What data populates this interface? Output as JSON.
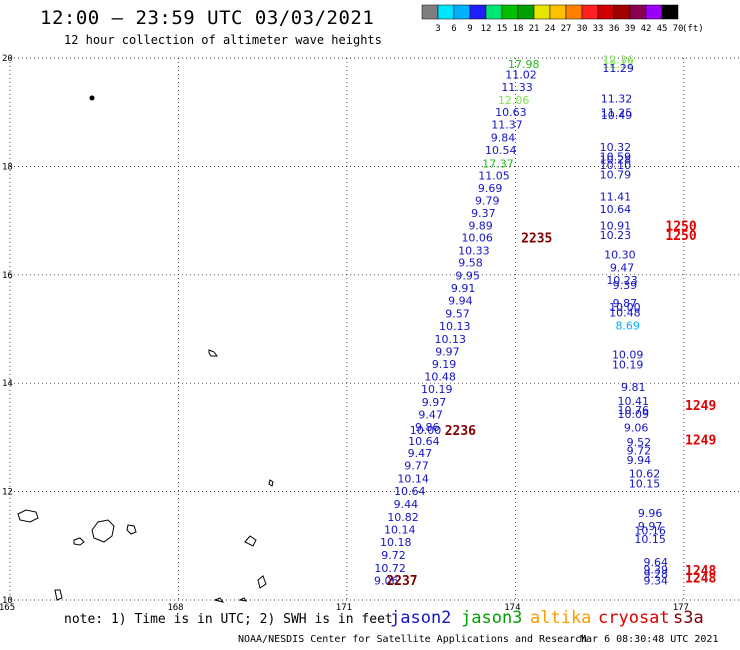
{
  "header": {
    "title": "12:00 – 23:59 UTC 03/03/2021",
    "subtitle": "12 hour collection of altimeter wave heights"
  },
  "colorbar": {
    "labels": [
      "3",
      "6",
      "9",
      "12",
      "15",
      "18",
      "21",
      "24",
      "27",
      "30",
      "33",
      "36",
      "39",
      "42",
      "45",
      "70"
    ],
    "unit": "(ft)",
    "colors": [
      "#7f7f7f",
      "#00e5ff",
      "#00b0ff",
      "#1f1fff",
      "#00e673",
      "#00c000",
      "#00a000",
      "#e6e600",
      "#ffc000",
      "#ff8000",
      "#ff2020",
      "#d00000",
      "#a00000",
      "#8b0050",
      "#9b00ff",
      "#000000"
    ]
  },
  "footer": {
    "note": "note: 1) Time is in UTC; 2) SWH is in feet",
    "satellites": [
      {
        "name": "jason2",
        "color": "#1414c8"
      },
      {
        "name": "jason3",
        "color": "#00a000"
      },
      {
        "name": "altika",
        "color": "#ff9900"
      },
      {
        "name": "cryosat",
        "color": "#e00000"
      },
      {
        "name": "s3a",
        "color": "#800000"
      }
    ],
    "credit": "NOAA/NESDIS Center for Satellite Applications and Research",
    "timestamp": "Mar  6 08:30:48 UTC 2021"
  },
  "chart_data": {
    "type": "scatter",
    "title": "12:00 – 23:59 UTC 03/03/2021",
    "subtitle": "12 hour collection of altimeter wave heights",
    "xlim": [
      165,
      178
    ],
    "ylim": [
      10,
      20
    ],
    "x_ticks": [
      "165",
      "168",
      "171",
      "174",
      "177"
    ],
    "y_ticks": [
      "10",
      "12",
      "14",
      "16",
      "18",
      "20"
    ],
    "grid": true,
    "series": [
      {
        "name": "track A",
        "points": [
          {
            "lon": 174.15,
            "lat": 19.82,
            "v": "17.98",
            "c": "#22bb22"
          },
          {
            "lon": 174.1,
            "lat": 19.62,
            "v": "11.02",
            "c": "#1414c8"
          },
          {
            "lon": 174.03,
            "lat": 19.39,
            "v": "11.33",
            "c": "#1414c8"
          },
          {
            "lon": 173.97,
            "lat": 19.15,
            "v": "12.06",
            "c": "#7ee04a"
          },
          {
            "lon": 173.92,
            "lat": 18.93,
            "v": "10.63",
            "c": "#1414c8"
          },
          {
            "lon": 173.85,
            "lat": 18.7,
            "v": "11.37",
            "c": "#1414c8"
          },
          {
            "lon": 173.78,
            "lat": 18.46,
            "v": "9.84",
            "c": "#1414c8"
          },
          {
            "lon": 173.74,
            "lat": 18.23,
            "v": "10.54",
            "c": "#1414c8"
          },
          {
            "lon": 173.69,
            "lat": 17.98,
            "v": "17.37",
            "c": "#22bb22"
          },
          {
            "lon": 173.62,
            "lat": 17.76,
            "v": "11.05",
            "c": "#1414c8"
          },
          {
            "lon": 173.55,
            "lat": 17.53,
            "v": "9.69",
            "c": "#1414c8"
          },
          {
            "lon": 173.5,
            "lat": 17.3,
            "v": "9.79",
            "c": "#1414c8"
          },
          {
            "lon": 173.43,
            "lat": 17.07,
            "v": "9.37",
            "c": "#1414c8"
          },
          {
            "lon": 173.38,
            "lat": 16.84,
            "v": "9.89",
            "c": "#1414c8"
          },
          {
            "lon": 173.32,
            "lat": 16.61,
            "v": "10.06",
            "c": "#1414c8"
          },
          {
            "lon": 173.26,
            "lat": 16.37,
            "v": "10.33",
            "c": "#1414c8"
          },
          {
            "lon": 173.2,
            "lat": 16.15,
            "v": "9.58",
            "c": "#1414c8"
          },
          {
            "lon": 173.15,
            "lat": 15.91,
            "v": "9.95",
            "c": "#1414c8"
          },
          {
            "lon": 173.07,
            "lat": 15.68,
            "v": "9.91",
            "c": "#1414c8"
          },
          {
            "lon": 173.02,
            "lat": 15.45,
            "v": "9.94",
            "c": "#1414c8"
          },
          {
            "lon": 172.97,
            "lat": 15.21,
            "v": "9.57",
            "c": "#1414c8"
          },
          {
            "lon": 172.92,
            "lat": 14.98,
            "v": "10.13",
            "c": "#1414c8"
          },
          {
            "lon": 172.84,
            "lat": 14.74,
            "v": "10.13",
            "c": "#1414c8"
          },
          {
            "lon": 172.79,
            "lat": 14.51,
            "v": "9.97",
            "c": "#1414c8"
          },
          {
            "lon": 172.73,
            "lat": 14.28,
            "v": "9.19",
            "c": "#1414c8"
          },
          {
            "lon": 172.66,
            "lat": 14.05,
            "v": "10.48",
            "c": "#1414c8"
          },
          {
            "lon": 172.6,
            "lat": 13.82,
            "v": "10.19",
            "c": "#1414c8"
          },
          {
            "lon": 172.55,
            "lat": 13.58,
            "v": "9.97",
            "c": "#1414c8"
          },
          {
            "lon": 172.49,
            "lat": 13.35,
            "v": "9.47",
            "c": "#1414c8"
          },
          {
            "lon": 172.43,
            "lat": 13.12,
            "v": "9.86",
            "c": "#1414c8"
          },
          {
            "lon": 172.4,
            "lat": 13.06,
            "v": "10.00",
            "c": "#1414c8"
          },
          {
            "lon": 172.37,
            "lat": 12.86,
            "v": "10.64",
            "c": "#1414c8"
          },
          {
            "lon": 172.3,
            "lat": 12.64,
            "v": "9.47",
            "c": "#1414c8"
          },
          {
            "lon": 172.24,
            "lat": 12.41,
            "v": "9.77",
            "c": "#1414c8"
          },
          {
            "lon": 172.18,
            "lat": 12.17,
            "v": "10.14",
            "c": "#1414c8"
          },
          {
            "lon": 172.12,
            "lat": 11.94,
            "v": "10.64",
            "c": "#1414c8"
          },
          {
            "lon": 172.05,
            "lat": 11.7,
            "v": "9.44",
            "c": "#1414c8"
          },
          {
            "lon": 172.0,
            "lat": 11.46,
            "v": "10.82",
            "c": "#1414c8"
          },
          {
            "lon": 171.94,
            "lat": 11.23,
            "v": "10.14",
            "c": "#1414c8"
          },
          {
            "lon": 171.87,
            "lat": 11.0,
            "v": "10.18",
            "c": "#1414c8"
          },
          {
            "lon": 171.83,
            "lat": 10.76,
            "v": "9.72",
            "c": "#1414c8"
          },
          {
            "lon": 171.77,
            "lat": 10.52,
            "v": "10.72",
            "c": "#1414c8"
          },
          {
            "lon": 171.7,
            "lat": 10.29,
            "v": "9.06",
            "c": "#1414c8"
          }
        ]
      },
      {
        "name": "track B",
        "points": [
          {
            "lon": 175.83,
            "lat": 19.9,
            "v": "12.36",
            "c": "#7ee04a"
          },
          {
            "lon": 175.83,
            "lat": 19.82,
            "v": "12.12",
            "c": "#7ee04a"
          },
          {
            "lon": 175.83,
            "lat": 19.74,
            "v": "11.29",
            "c": "#1414c8"
          },
          {
            "lon": 175.8,
            "lat": 19.18,
            "v": "11.32",
            "c": "#1414c8"
          },
          {
            "lon": 175.8,
            "lat": 18.92,
            "v": "11.25",
            "c": "#1414c8"
          },
          {
            "lon": 175.8,
            "lat": 18.87,
            "v": "10.49",
            "c": "#1414c8"
          },
          {
            "lon": 175.78,
            "lat": 18.28,
            "v": "10.32",
            "c": "#1414c8"
          },
          {
            "lon": 175.78,
            "lat": 18.11,
            "v": "10.59",
            "c": "#1414c8"
          },
          {
            "lon": 175.78,
            "lat": 18.05,
            "v": "10.28",
            "c": "#1414c8"
          },
          {
            "lon": 175.78,
            "lat": 17.95,
            "v": "10.10",
            "c": "#1414c8"
          },
          {
            "lon": 175.78,
            "lat": 17.78,
            "v": "10.79",
            "c": "#1414c8"
          },
          {
            "lon": 175.78,
            "lat": 17.37,
            "v": "11.41",
            "c": "#1414c8"
          },
          {
            "lon": 175.78,
            "lat": 17.14,
            "v": "10.64",
            "c": "#1414c8"
          },
          {
            "lon": 175.78,
            "lat": 16.84,
            "v": "10.91",
            "c": "#1414c8"
          },
          {
            "lon": 175.78,
            "lat": 16.66,
            "v": "10.23",
            "c": "#1414c8"
          },
          {
            "lon": 175.86,
            "lat": 16.3,
            "v": "10.30",
            "c": "#1414c8"
          },
          {
            "lon": 175.9,
            "lat": 16.06,
            "v": "9.47",
            "c": "#1414c8"
          },
          {
            "lon": 175.9,
            "lat": 15.83,
            "v": "10.23",
            "c": "#1414c8"
          },
          {
            "lon": 175.95,
            "lat": 15.74,
            "v": "9.39",
            "c": "#1414c8"
          },
          {
            "lon": 175.95,
            "lat": 15.41,
            "v": "9.87",
            "c": "#1414c8"
          },
          {
            "lon": 175.95,
            "lat": 15.33,
            "v": "10.00",
            "c": "#1414c8"
          },
          {
            "lon": 175.95,
            "lat": 15.23,
            "v": "10.48",
            "c": "#1414c8"
          },
          {
            "lon": 176.0,
            "lat": 14.99,
            "v": "8.69",
            "c": "#00b0ff"
          },
          {
            "lon": 176.0,
            "lat": 14.46,
            "v": "10.09",
            "c": "#1414c8"
          },
          {
            "lon": 176.0,
            "lat": 14.27,
            "v": "10.19",
            "c": "#1414c8"
          },
          {
            "lon": 176.1,
            "lat": 13.86,
            "v": "9.81",
            "c": "#1414c8"
          },
          {
            "lon": 176.1,
            "lat": 13.6,
            "v": "10.41",
            "c": "#1414c8"
          },
          {
            "lon": 176.1,
            "lat": 13.43,
            "v": "10.76",
            "c": "#1414c8"
          },
          {
            "lon": 176.1,
            "lat": 13.36,
            "v": "10.09",
            "c": "#1414c8"
          },
          {
            "lon": 176.15,
            "lat": 13.11,
            "v": "9.06",
            "c": "#1414c8"
          },
          {
            "lon": 176.2,
            "lat": 12.84,
            "v": "9.52",
            "c": "#1414c8"
          },
          {
            "lon": 176.2,
            "lat": 12.68,
            "v": "9.72",
            "c": "#1414c8"
          },
          {
            "lon": 176.2,
            "lat": 12.51,
            "v": "9.94",
            "c": "#1414c8"
          },
          {
            "lon": 176.3,
            "lat": 12.26,
            "v": "10.62",
            "c": "#1414c8"
          },
          {
            "lon": 176.3,
            "lat": 12.08,
            "v": "10.15",
            "c": "#1414c8"
          },
          {
            "lon": 176.4,
            "lat": 11.53,
            "v": "9.96",
            "c": "#1414c8"
          },
          {
            "lon": 176.4,
            "lat": 11.29,
            "v": "9.97",
            "c": "#1414c8"
          },
          {
            "lon": 176.4,
            "lat": 11.21,
            "v": "10.16",
            "c": "#1414c8"
          },
          {
            "lon": 176.4,
            "lat": 11.05,
            "v": "10.15",
            "c": "#1414c8"
          },
          {
            "lon": 176.5,
            "lat": 10.63,
            "v": "9.64",
            "c": "#1414c8"
          },
          {
            "lon": 176.5,
            "lat": 10.49,
            "v": "9.39",
            "c": "#1414c8"
          },
          {
            "lon": 176.5,
            "lat": 10.41,
            "v": "9.28",
            "c": "#1414c8"
          },
          {
            "lon": 176.5,
            "lat": 10.29,
            "v": "9.34",
            "c": "#1414c8"
          }
        ]
      }
    ],
    "time_labels": [
      {
        "lon": 174.38,
        "lat": 16.6,
        "v": "2235",
        "c": "#800000"
      },
      {
        "lon": 173.02,
        "lat": 13.04,
        "v": "2236",
        "c": "#800000"
      },
      {
        "lon": 171.98,
        "lat": 10.28,
        "v": "2237",
        "c": "#800000"
      },
      {
        "lon": 176.95,
        "lat": 16.82,
        "v": "1250",
        "c": "#e00000"
      },
      {
        "lon": 176.95,
        "lat": 16.64,
        "v": "1250",
        "c": "#e00000"
      },
      {
        "lon": 177.3,
        "lat": 13.51,
        "v": "1249",
        "c": "#e00000"
      },
      {
        "lon": 177.3,
        "lat": 12.87,
        "v": "1249",
        "c": "#e00000"
      },
      {
        "lon": 177.3,
        "lat": 10.46,
        "v": "1248",
        "c": "#e00000"
      },
      {
        "lon": 177.3,
        "lat": 10.32,
        "v": "1248",
        "c": "#e00000"
      }
    ]
  }
}
